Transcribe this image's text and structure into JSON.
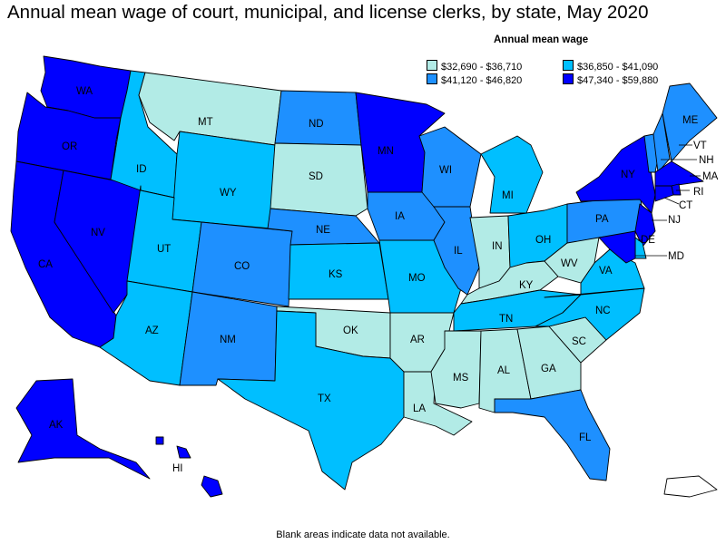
{
  "title": "Annual mean wage of court, municipal, and license clerks, by state, May 2020",
  "legend": {
    "title": "Annual mean wage",
    "items": [
      {
        "range": "$32,690 - $36,710",
        "color": "#b2ebe6"
      },
      {
        "range": "$36,850 - $41,090",
        "color": "#00bfff"
      },
      {
        "range": "$41,120 - $46,820",
        "color": "#1e90ff"
      },
      {
        "range": "$47,340 - $59,880",
        "color": "#0000ff"
      }
    ]
  },
  "states": {
    "WA": {
      "label": "WA",
      "tier": 3
    },
    "OR": {
      "label": "OR",
      "tier": 3
    },
    "CA": {
      "label": "CA",
      "tier": 3
    },
    "NV": {
      "label": "NV",
      "tier": 3
    },
    "ID": {
      "label": "ID",
      "tier": 1
    },
    "MT": {
      "label": "MT",
      "tier": 0
    },
    "WY": {
      "label": "WY",
      "tier": 1
    },
    "UT": {
      "label": "UT",
      "tier": 1
    },
    "AZ": {
      "label": "AZ",
      "tier": 1
    },
    "CO": {
      "label": "CO",
      "tier": 2
    },
    "NM": {
      "label": "NM",
      "tier": 2
    },
    "ND": {
      "label": "ND",
      "tier": 2
    },
    "SD": {
      "label": "SD",
      "tier": 0
    },
    "NE": {
      "label": "NE",
      "tier": 2
    },
    "KS": {
      "label": "KS",
      "tier": 1
    },
    "OK": {
      "label": "OK",
      "tier": 0
    },
    "TX": {
      "label": "TX",
      "tier": 1
    },
    "MN": {
      "label": "MN",
      "tier": 3
    },
    "IA": {
      "label": "IA",
      "tier": 2
    },
    "MO": {
      "label": "MO",
      "tier": 1
    },
    "AR": {
      "label": "AR",
      "tier": 0
    },
    "LA": {
      "label": "LA",
      "tier": 0
    },
    "WI": {
      "label": "WI",
      "tier": 2
    },
    "IL": {
      "label": "IL",
      "tier": 2
    },
    "MI": {
      "label": "MI",
      "tier": 1
    },
    "IN": {
      "label": "IN",
      "tier": 0
    },
    "OH": {
      "label": "OH",
      "tier": 1
    },
    "KY": {
      "label": "KY",
      "tier": 0
    },
    "TN": {
      "label": "TN",
      "tier": 1
    },
    "MS": {
      "label": "MS",
      "tier": 0
    },
    "AL": {
      "label": "AL",
      "tier": 0
    },
    "GA": {
      "label": "GA",
      "tier": 0
    },
    "FL": {
      "label": "FL",
      "tier": 2
    },
    "SC": {
      "label": "SC",
      "tier": 0
    },
    "NC": {
      "label": "NC",
      "tier": 1
    },
    "VA": {
      "label": "VA",
      "tier": 1
    },
    "WV": {
      "label": "WV",
      "tier": 0
    },
    "PA": {
      "label": "PA",
      "tier": 2
    },
    "NY": {
      "label": "NY",
      "tier": 3
    },
    "VT": {
      "label": "VT",
      "tier": 2
    },
    "NH": {
      "label": "NH",
      "tier": 2
    },
    "ME": {
      "label": "ME",
      "tier": 2
    },
    "MA": {
      "label": "MA",
      "tier": 3
    },
    "RI": {
      "label": "RI",
      "tier": 3
    },
    "CT": {
      "label": "CT",
      "tier": 3
    },
    "NJ": {
      "label": "NJ",
      "tier": 3
    },
    "DE": {
      "label": "DE",
      "tier": 1
    },
    "MD": {
      "label": "MD",
      "tier": 3
    },
    "AK": {
      "label": "AK",
      "tier": 3
    },
    "HI": {
      "label": "HI",
      "tier": 3
    },
    "PR": {
      "label": "",
      "tier": -1
    }
  },
  "footnote": "Blank areas indicate data not available."
}
